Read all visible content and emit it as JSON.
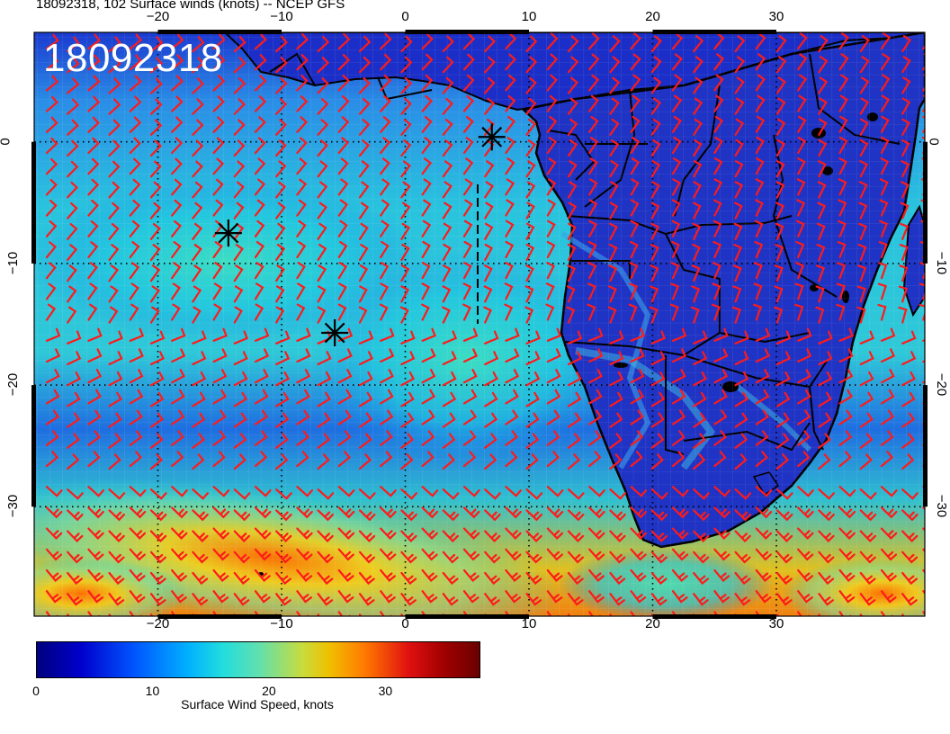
{
  "title": "18092318, 102 Surface winds (knots) -- NCEP GFS",
  "stamp": "18092318",
  "colors": {
    "barb": "#ff1a1a",
    "coast": "#000000",
    "ocean_low": "#1a3fd6",
    "ocean_mid": "#2ec4d8",
    "ocean_high": "#f0b020"
  },
  "axes": {
    "lon_ticks": [
      "−20",
      "−10",
      "0",
      "10",
      "20",
      "30"
    ],
    "lat_ticks": [
      "0",
      "−10",
      "−20",
      "−30"
    ],
    "lon_range": [
      -30,
      42
    ],
    "lat_range": [
      -39,
      9
    ]
  },
  "markers": [
    {
      "name": "storm-marker-1",
      "lon": 7.0,
      "lat": 0.4
    },
    {
      "name": "storm-marker-2",
      "lon": -14.3,
      "lat": -7.5
    },
    {
      "name": "storm-marker-3",
      "lon": -5.7,
      "lat": -15.7
    }
  ],
  "colorbar": {
    "ticks": [
      "0",
      "10",
      "20",
      "30"
    ],
    "tick_values": [
      0,
      10,
      20,
      30
    ],
    "range": [
      0,
      38
    ],
    "label": "Surface Wind Speed, knots"
  }
}
